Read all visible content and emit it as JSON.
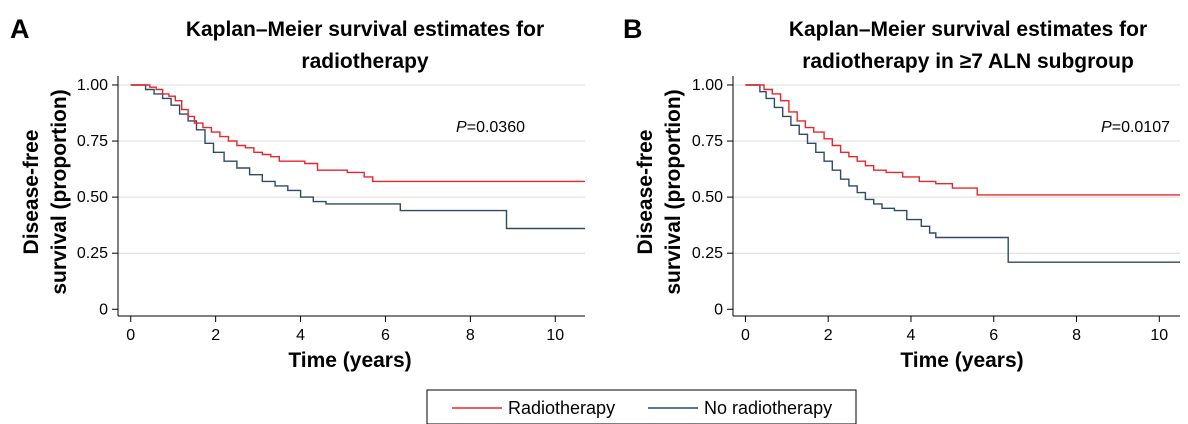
{
  "legend": {
    "items": [
      {
        "label": "Radiotherapy",
        "color": "#e8262b"
      },
      {
        "label": "No radiotherapy",
        "color": "#2e4a66"
      }
    ]
  },
  "chart_data": [
    {
      "type": "line",
      "panel_label": "A",
      "title_lines": [
        "Kaplan–Meier survival estimates for",
        "radiotherapy"
      ],
      "xlabel": "Time (years)",
      "ylabel_lines": [
        "Disease-free",
        "survival (proportion)"
      ],
      "xlim": [
        -0.3,
        10.7
      ],
      "ylim": [
        -0.03,
        1.04
      ],
      "xticks": [
        0,
        2,
        4,
        6,
        8,
        10
      ],
      "yticks": [
        0,
        0.25,
        0.5,
        0.75,
        1.0
      ],
      "ytick_labels": [
        "0",
        "0.25",
        "0.50",
        "0.75",
        "1.00"
      ],
      "grid": "horizontal",
      "annotation": {
        "prefix": "P",
        "value": "=0.0360"
      },
      "series": [
        {
          "name": "Radiotherapy",
          "color": "#e8262b",
          "x": [
            0,
            0.45,
            0.6,
            0.75,
            0.9,
            1.05,
            1.2,
            1.35,
            1.5,
            1.7,
            1.9,
            2.1,
            2.3,
            2.5,
            2.7,
            2.9,
            3.1,
            3.3,
            3.5,
            3.8,
            4.1,
            4.4,
            4.7,
            5.1,
            5.5,
            5.7,
            6.0,
            10.7
          ],
          "y": [
            1.0,
            0.99,
            0.98,
            0.96,
            0.95,
            0.93,
            0.89,
            0.86,
            0.83,
            0.81,
            0.79,
            0.77,
            0.75,
            0.73,
            0.72,
            0.7,
            0.69,
            0.68,
            0.66,
            0.66,
            0.65,
            0.62,
            0.62,
            0.61,
            0.59,
            0.57,
            0.57,
            0.57
          ]
        },
        {
          "name": "No radiotherapy",
          "color": "#2e4a66",
          "x": [
            0,
            0.35,
            0.55,
            0.75,
            0.95,
            1.15,
            1.35,
            1.55,
            1.75,
            1.95,
            2.2,
            2.5,
            2.8,
            3.1,
            3.4,
            3.7,
            4.0,
            4.3,
            4.6,
            5.5,
            6.35,
            8.85,
            10.7
          ],
          "y": [
            1.0,
            0.98,
            0.96,
            0.94,
            0.91,
            0.87,
            0.84,
            0.8,
            0.74,
            0.7,
            0.66,
            0.63,
            0.6,
            0.57,
            0.55,
            0.53,
            0.5,
            0.48,
            0.47,
            0.47,
            0.44,
            0.36,
            0.36
          ]
        }
      ]
    },
    {
      "type": "line",
      "panel_label": "B",
      "title_lines": [
        "Kaplan–Meier survival estimates for",
        "radiotherapy in ≥7 ALN subgroup"
      ],
      "xlabel": "Time (years)",
      "ylabel_lines": [
        "Disease-free",
        "survival (proportion)"
      ],
      "xlim": [
        -0.3,
        10.5
      ],
      "ylim": [
        -0.03,
        1.04
      ],
      "xticks": [
        0,
        2,
        4,
        6,
        8,
        10
      ],
      "yticks": [
        0,
        0.25,
        0.5,
        0.75,
        1.0
      ],
      "ytick_labels": [
        "0",
        "0.25",
        "0.50",
        "0.75",
        "1.00"
      ],
      "grid": "horizontal",
      "annotation": {
        "prefix": "P",
        "value": "=0.0107"
      },
      "series": [
        {
          "name": "Radiotherapy",
          "color": "#e8262b",
          "x": [
            0,
            0.45,
            0.65,
            0.85,
            1.05,
            1.25,
            1.45,
            1.65,
            1.9,
            2.1,
            2.3,
            2.5,
            2.7,
            2.9,
            3.1,
            3.4,
            3.8,
            4.2,
            4.6,
            5.0,
            5.6,
            10.5
          ],
          "y": [
            1.0,
            0.98,
            0.96,
            0.93,
            0.88,
            0.84,
            0.81,
            0.79,
            0.76,
            0.73,
            0.7,
            0.68,
            0.66,
            0.64,
            0.62,
            0.61,
            0.59,
            0.57,
            0.56,
            0.54,
            0.51,
            0.51
          ]
        },
        {
          "name": "No radiotherapy",
          "color": "#2e4a66",
          "x": [
            0,
            0.35,
            0.5,
            0.7,
            0.9,
            1.1,
            1.3,
            1.5,
            1.7,
            1.9,
            2.1,
            2.3,
            2.5,
            2.7,
            2.9,
            3.1,
            3.3,
            3.6,
            3.9,
            4.25,
            4.45,
            4.6,
            5.0,
            6.35,
            10.5
          ],
          "y": [
            1.0,
            0.97,
            0.94,
            0.9,
            0.86,
            0.82,
            0.78,
            0.74,
            0.7,
            0.66,
            0.62,
            0.58,
            0.55,
            0.52,
            0.49,
            0.47,
            0.45,
            0.44,
            0.4,
            0.37,
            0.34,
            0.32,
            0.32,
            0.21,
            0.21
          ]
        }
      ]
    }
  ]
}
